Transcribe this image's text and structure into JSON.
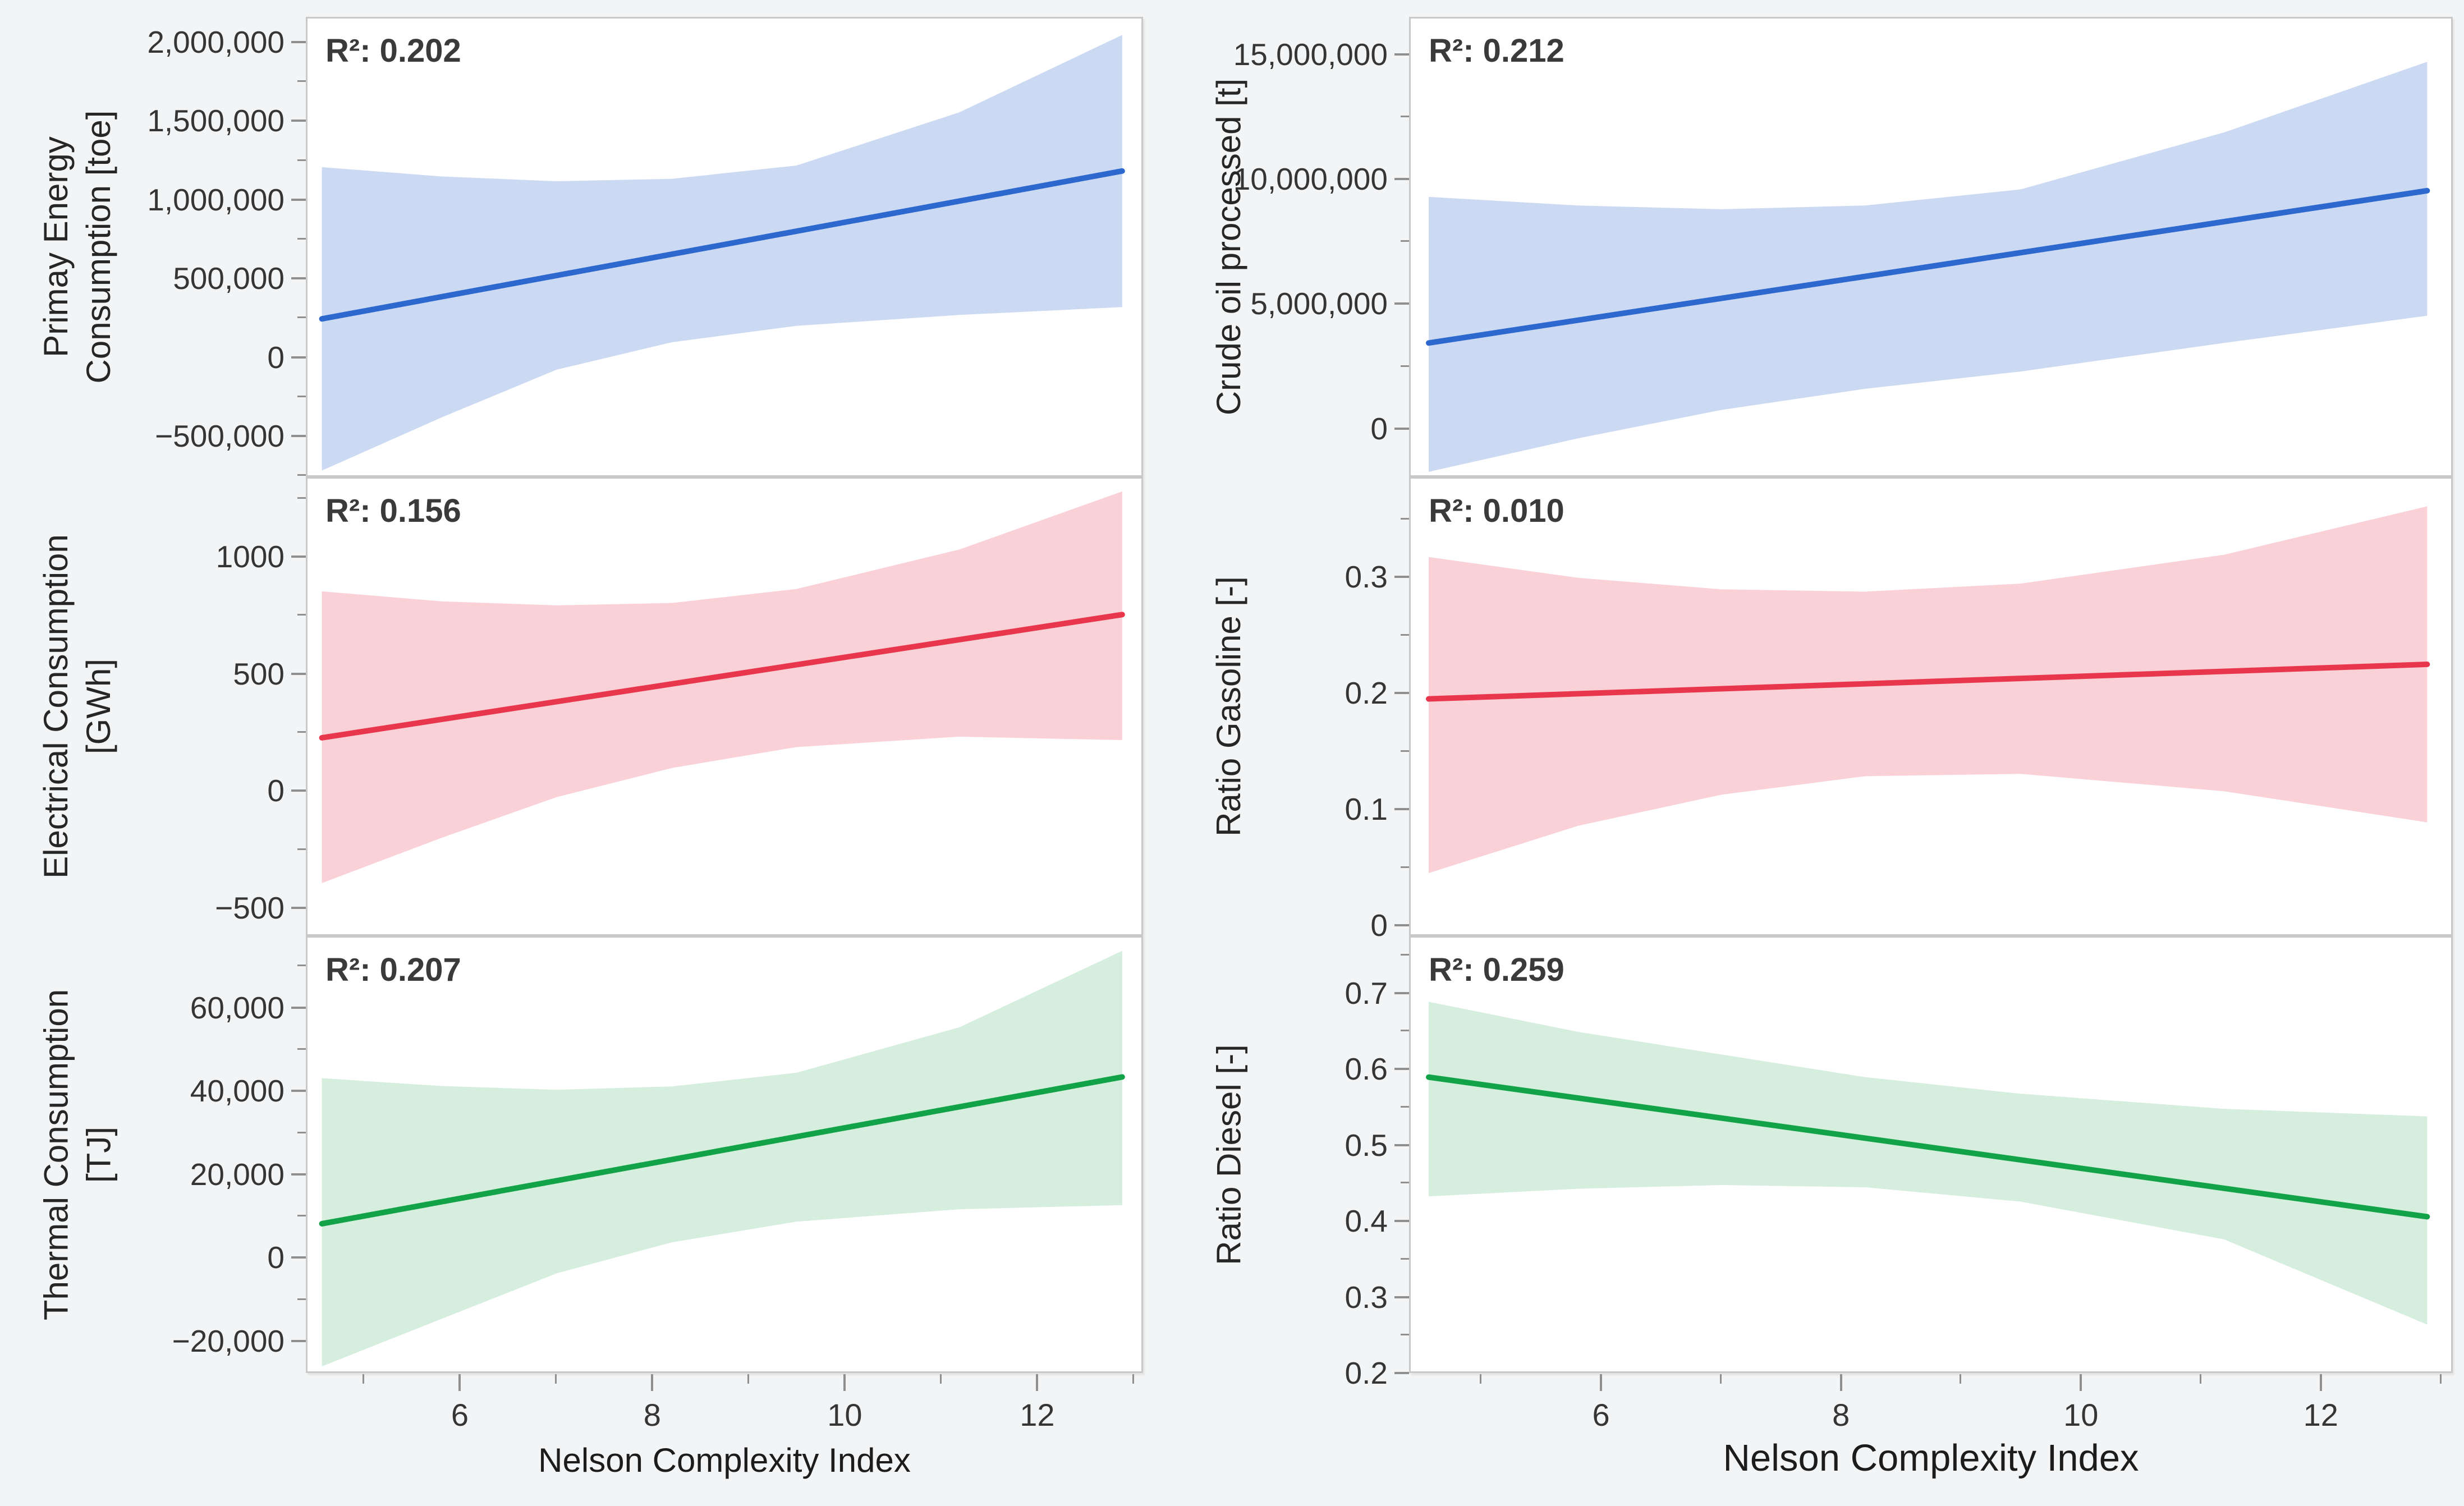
{
  "figure": {
    "background": "#f3f4f5",
    "description": "Grid of six linear regression plots with shaded confidence bands versus Nelson Complexity Index"
  },
  "x_axis": {
    "title": "Nelson Complexity Index",
    "xlim": [
      4.4,
      13.1
    ],
    "tick_values": [
      6,
      8,
      10,
      12
    ],
    "tick_labels": [
      "6",
      "8",
      "10",
      "12"
    ],
    "minor_tick_values": [
      5,
      7,
      9,
      11,
      13
    ]
  },
  "chart_data": [
    {
      "id": "primary-energy-consumption",
      "type": "line",
      "column": "left",
      "row": 0,
      "ylabel_lines": [
        "Primay Energy",
        "Consumption [toe]"
      ],
      "r2_label": "R²: 0.202",
      "r2": 0.202,
      "line_color": "#2d68cf",
      "band_color": "#cbd9f3",
      "ylim": [
        -760000,
        2160000
      ],
      "ytick_values": [
        2000000,
        1500000,
        1000000,
        500000,
        0,
        -500000
      ],
      "ytick_labels": [
        "2,000,000",
        "1,500,000",
        "1,000,000",
        "500,000",
        "0",
        "−500,000"
      ],
      "regression_line": {
        "x": [
          4.55,
          12.9
        ],
        "y": [
          240000,
          1185000
        ]
      },
      "confidence_band": {
        "x": [
          4.55,
          5.8,
          7.0,
          8.2,
          9.5,
          11.2,
          12.9
        ],
        "upper": [
          1210000,
          1150000,
          1120000,
          1135000,
          1220000,
          1560000,
          2055000
        ],
        "lower": [
          -730000,
          -390000,
          -85000,
          90000,
          195000,
          265000,
          315000
        ]
      }
    },
    {
      "id": "crude-oil-processed",
      "type": "line",
      "column": "right",
      "row": 0,
      "ylabel_lines": [
        "Crude oil processed [t]"
      ],
      "r2_label": "R²: 0.212",
      "r2": 0.212,
      "line_color": "#2d68cf",
      "band_color": "#cbd9f3",
      "ylim": [
        -1940000,
        16500000
      ],
      "ytick_values": [
        15000000,
        10000000,
        5000000,
        0
      ],
      "ytick_labels": [
        "15,000,000",
        "10,000,000",
        "5,000,000",
        "0"
      ],
      "regression_line": {
        "x": [
          4.55,
          12.9
        ],
        "y": [
          3400000,
          9550000
        ]
      },
      "confidence_band": {
        "x": [
          4.55,
          5.8,
          7.0,
          8.2,
          9.5,
          11.2,
          12.9
        ],
        "upper": [
          9300000,
          8950000,
          8800000,
          8950000,
          9600000,
          11900000,
          14750000
        ],
        "lower": [
          -1800000,
          -450000,
          700000,
          1550000,
          2250000,
          3400000,
          4500000
        ]
      }
    },
    {
      "id": "electrical-consumption",
      "type": "line",
      "column": "left",
      "row": 1,
      "ylabel_lines": [
        "Electrical Consumption",
        "[GWh]"
      ],
      "r2_label": "R²: 0.156",
      "r2": 0.156,
      "line_color": "#e8374d",
      "band_color": "#fbd1d8",
      "ylim": [
        -620,
        1340
      ],
      "ytick_values": [
        1000,
        500,
        0,
        -500
      ],
      "ytick_labels": [
        "1000",
        "500",
        "0",
        "−500"
      ],
      "regression_line": {
        "x": [
          4.55,
          12.9
        ],
        "y": [
          225,
          755
        ]
      },
      "confidence_band": {
        "x": [
          4.55,
          5.8,
          7.0,
          8.2,
          9.5,
          11.2,
          12.9
        ],
        "upper": [
          855,
          812,
          795,
          805,
          865,
          1035,
          1285
        ],
        "lower": [
          -400,
          -205,
          -30,
          95,
          185,
          230,
          215
        ]
      }
    },
    {
      "id": "ratio-gasoline",
      "type": "line",
      "column": "right",
      "row": 1,
      "ylabel_lines": [
        "Ratio Gasoline [-]"
      ],
      "r2_label": "R²: 0.010",
      "r2": 0.01,
      "line_color": "#e8374d",
      "band_color": "#fbd1d8",
      "ylim": [
        -0.009,
        0.386
      ],
      "ytick_values": [
        0.3,
        0.2,
        0.1,
        0
      ],
      "ytick_labels": [
        "0.3",
        "0.2",
        "0.1",
        "0"
      ],
      "regression_line": {
        "x": [
          4.55,
          12.9
        ],
        "y": [
          0.195,
          0.225
        ]
      },
      "confidence_band": {
        "x": [
          4.55,
          5.8,
          7.0,
          8.2,
          9.5,
          11.2,
          12.9
        ],
        "upper": [
          0.318,
          0.3,
          0.29,
          0.288,
          0.295,
          0.32,
          0.362
        ],
        "lower": [
          0.044,
          0.085,
          0.112,
          0.128,
          0.13,
          0.115,
          0.088
        ]
      }
    },
    {
      "id": "thermal-consumption",
      "type": "line",
      "column": "left",
      "row": 2,
      "ylabel_lines": [
        "Thermal Consumption",
        "[TJ]"
      ],
      "r2_label": "R²: 0.207",
      "r2": 0.207,
      "line_color": "#12a348",
      "band_color": "#d6eedd",
      "ylim": [
        -27700,
        77200
      ],
      "ytick_values": [
        60000,
        40000,
        20000,
        0,
        -20000
      ],
      "ytick_labels": [
        "60,000",
        "40,000",
        "20,000",
        "0",
        "−20,000"
      ],
      "regression_line": {
        "x": [
          4.55,
          12.9
        ],
        "y": [
          8000,
          43500
        ]
      },
      "confidence_band": {
        "x": [
          4.55,
          5.8,
          7.0,
          8.2,
          9.5,
          11.2,
          12.9
        ],
        "upper": [
          43200,
          41300,
          40400,
          41200,
          44500,
          55500,
          74000
        ],
        "lower": [
          -26500,
          -15000,
          -4000,
          3500,
          8500,
          11500,
          12500
        ]
      }
    },
    {
      "id": "ratio-diesel",
      "type": "line",
      "column": "right",
      "row": 2,
      "ylabel_lines": [
        "Ratio Diesel [-]"
      ],
      "r2_label": "R²: 0.259",
      "r2": 0.259,
      "line_color": "#12a348",
      "band_color": "#d6eedd",
      "ylim": [
        0.2,
        0.775
      ],
      "ytick_values": [
        0.7,
        0.6,
        0.5,
        0.4,
        0.3,
        0.2
      ],
      "ytick_labels": [
        "0.7",
        "0.6",
        "0.5",
        "0.4",
        "0.3",
        "0.2"
      ],
      "regression_line": {
        "x": [
          4.55,
          12.9
        ],
        "y": [
          0.59,
          0.405
        ]
      },
      "confidence_band": {
        "x": [
          4.55,
          5.8,
          7.0,
          8.2,
          9.5,
          11.2,
          12.9
        ],
        "upper": [
          0.69,
          0.65,
          0.62,
          0.59,
          0.568,
          0.548,
          0.538
        ],
        "lower": [
          0.432,
          0.442,
          0.447,
          0.444,
          0.425,
          0.375,
          0.262
        ]
      }
    }
  ]
}
